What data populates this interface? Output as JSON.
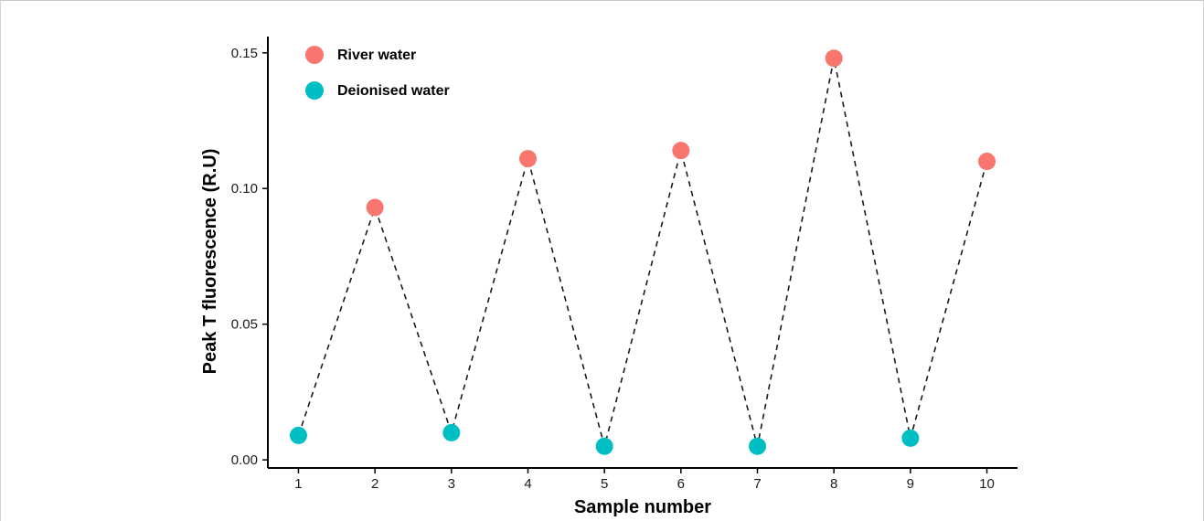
{
  "chart_data": {
    "type": "scatter",
    "xlabel": "Sample number",
    "ylabel": "Peak T fluorescence (R.U)",
    "xlim": [
      0.6,
      10.4
    ],
    "ylim": [
      -0.003,
      0.156
    ],
    "x_ticks": [
      1,
      2,
      3,
      4,
      5,
      6,
      7,
      8,
      9,
      10
    ],
    "y_ticks": [
      0.0,
      0.05,
      0.1,
      0.15
    ],
    "y_tick_labels": [
      "0.00",
      "0.05",
      "0.10",
      "0.15"
    ],
    "grid": false,
    "legend_position": "top-left",
    "connector": {
      "style": "dashed",
      "color": "#1a1a1a",
      "order": "sample number"
    },
    "series": [
      {
        "name": "River water",
        "color": "#F8766D",
        "x": [
          2,
          4,
          6,
          8,
          10
        ],
        "y": [
          0.093,
          0.111,
          0.114,
          0.148,
          0.11
        ]
      },
      {
        "name": "Deionised water",
        "color": "#00BFC4",
        "x": [
          1,
          3,
          5,
          7,
          9
        ],
        "y": [
          0.009,
          0.01,
          0.005,
          0.005,
          0.008
        ]
      }
    ]
  }
}
